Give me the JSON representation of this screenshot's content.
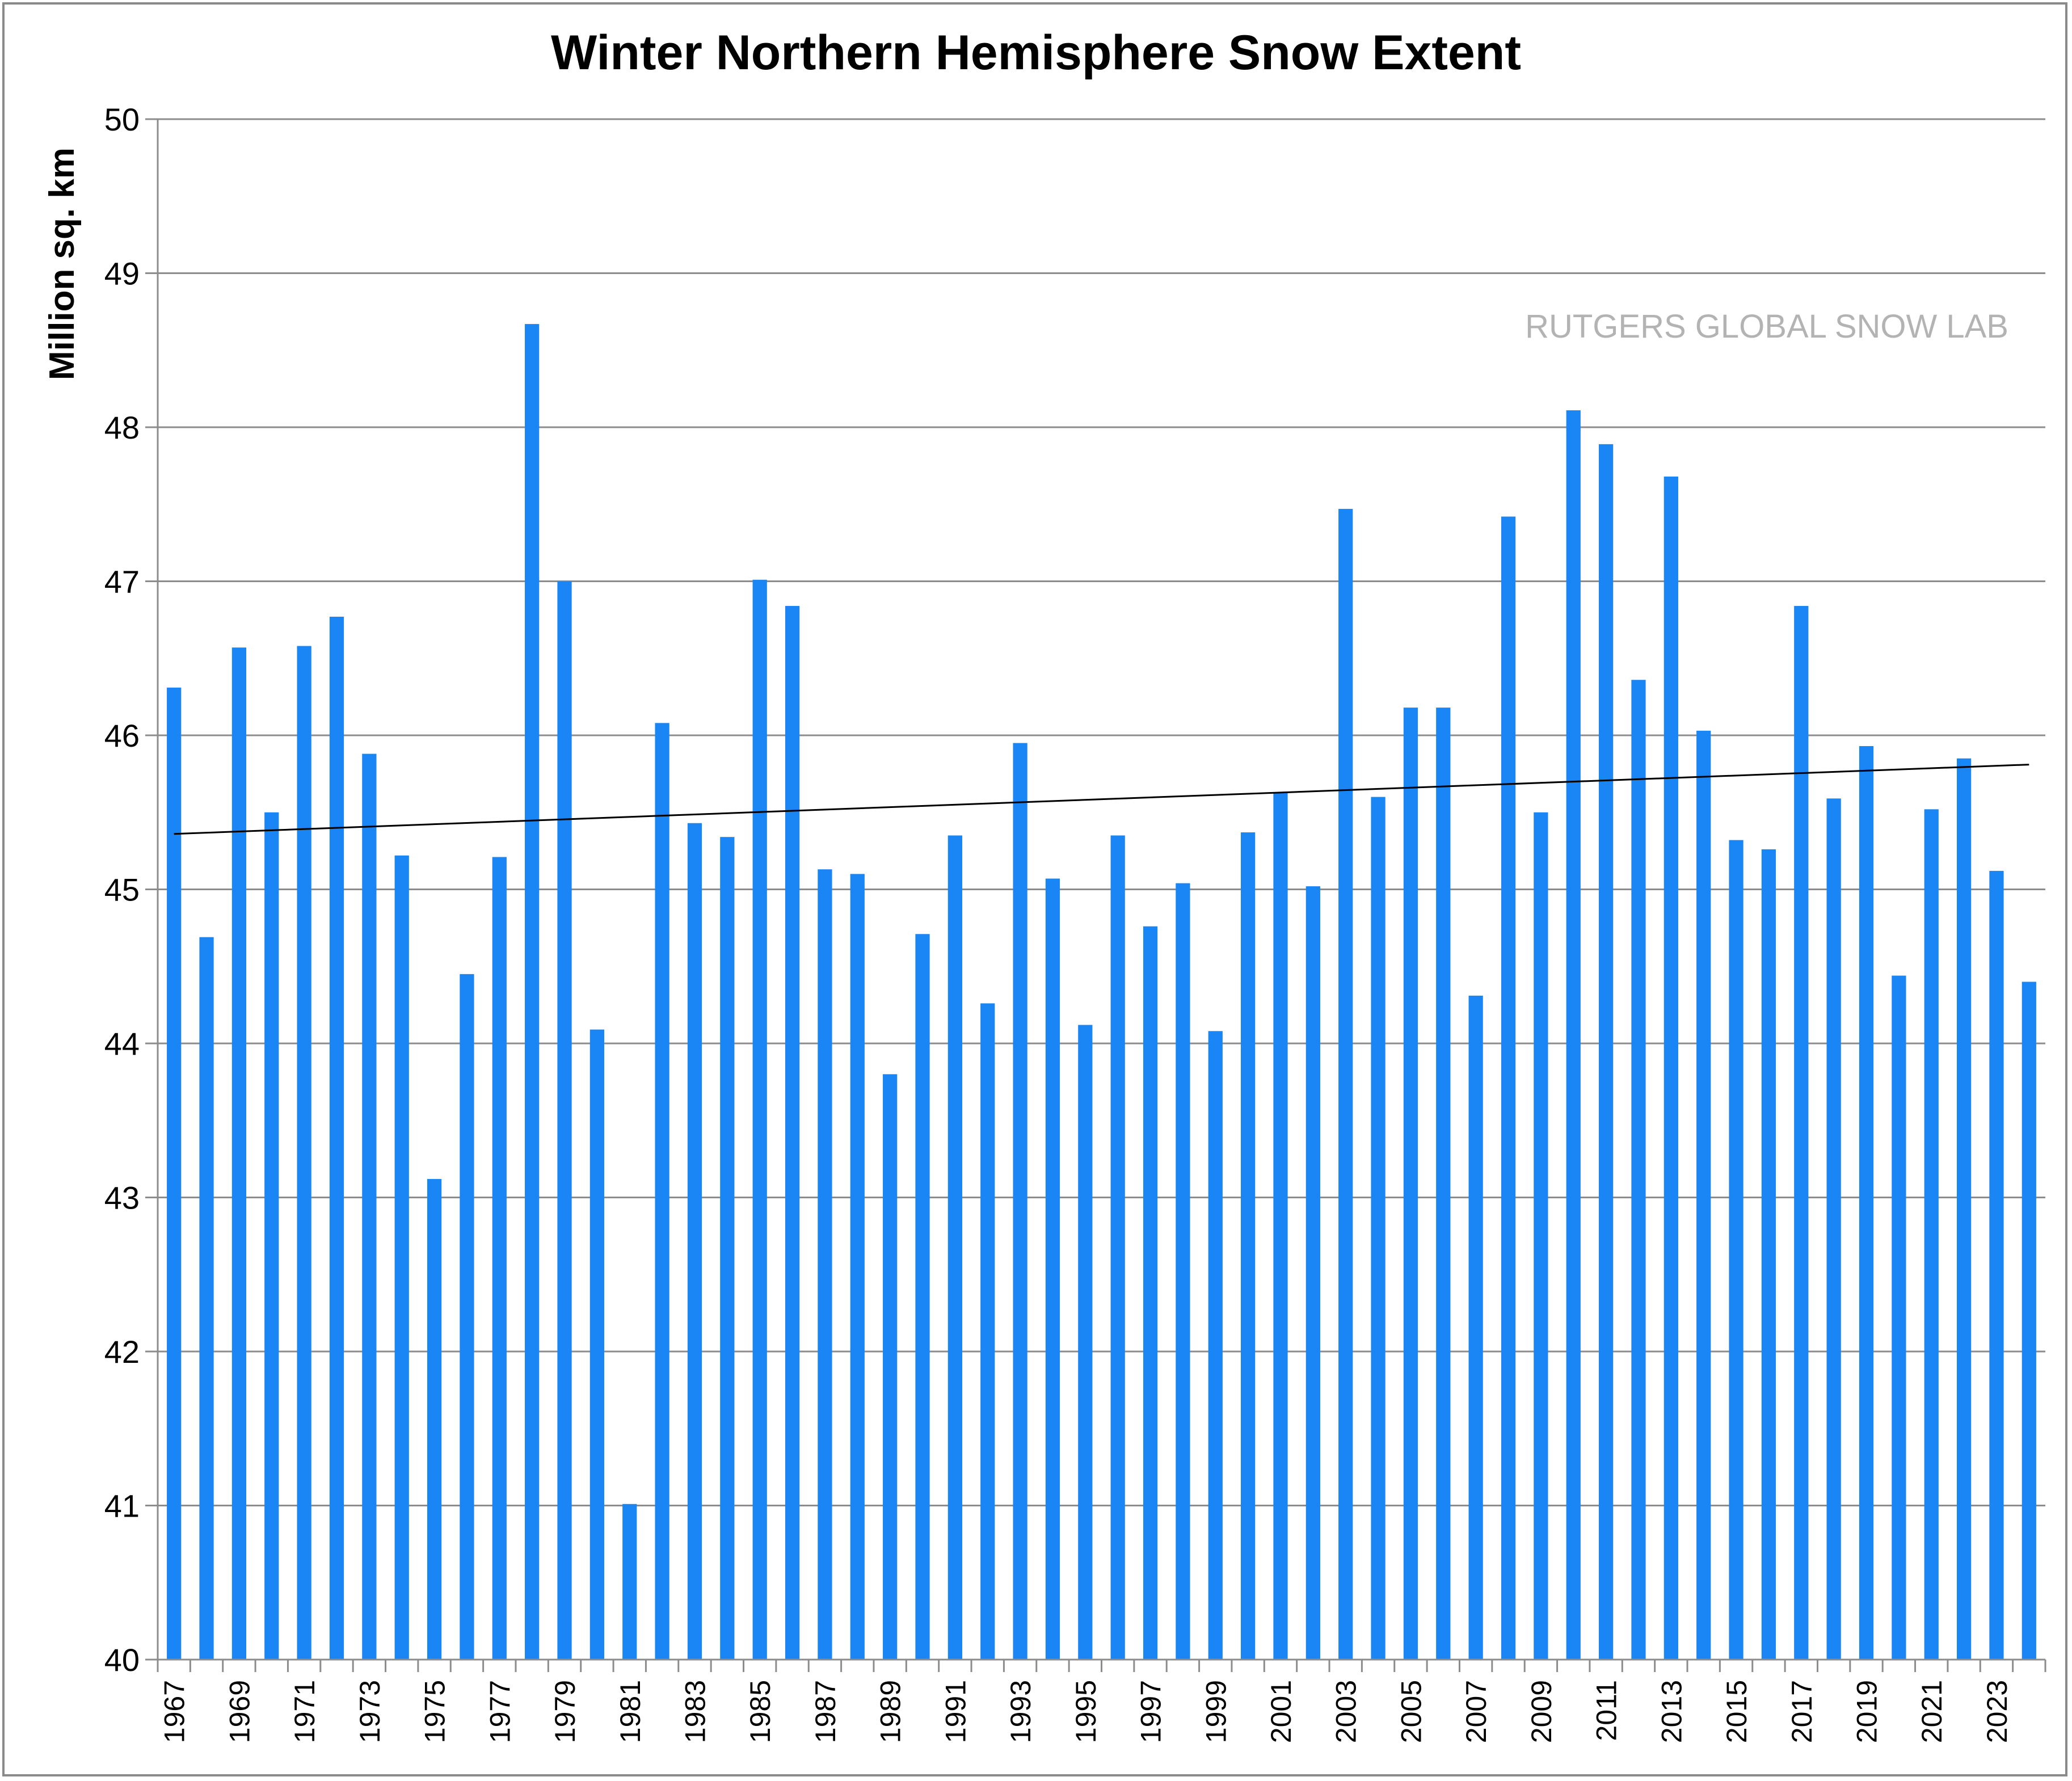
{
  "chart_data": {
    "type": "bar",
    "title": "Winter Northern Hemisphere Snow Extent",
    "ylabel": "Million sq. km",
    "xlabel": "",
    "ylim": [
      40,
      50
    ],
    "yticks": [
      40,
      41,
      42,
      43,
      44,
      45,
      46,
      47,
      48,
      49,
      50
    ],
    "grid": true,
    "annotation": "RUTGERS GLOBAL SNOW LAB",
    "bar_color": "#1a86f5",
    "categories": [
      1967,
      1968,
      1969,
      1970,
      1971,
      1972,
      1973,
      1974,
      1975,
      1976,
      1977,
      1978,
      1979,
      1980,
      1981,
      1982,
      1983,
      1984,
      1985,
      1986,
      1987,
      1988,
      1989,
      1990,
      1991,
      1992,
      1993,
      1994,
      1995,
      1996,
      1997,
      1998,
      1999,
      2000,
      2001,
      2002,
      2003,
      2004,
      2005,
      2006,
      2007,
      2008,
      2009,
      2010,
      2011,
      2012,
      2013,
      2014,
      2015,
      2016,
      2017,
      2018,
      2019,
      2020,
      2021,
      2022,
      2023,
      2024
    ],
    "values": [
      46.31,
      44.69,
      46.57,
      45.5,
      46.58,
      46.77,
      45.88,
      45.22,
      43.12,
      44.45,
      45.21,
      48.67,
      47.0,
      44.09,
      41.01,
      46.08,
      45.43,
      45.34,
      47.01,
      46.84,
      45.13,
      45.1,
      43.8,
      44.71,
      45.35,
      44.26,
      45.95,
      45.07,
      44.12,
      45.35,
      44.76,
      45.04,
      44.08,
      45.37,
      45.63,
      45.02,
      47.47,
      45.6,
      46.18,
      46.18,
      44.31,
      47.42,
      45.5,
      48.11,
      47.89,
      46.36,
      47.68,
      46.03,
      45.32,
      45.26,
      46.84,
      45.59,
      45.93,
      44.44,
      45.52,
      45.85,
      45.12,
      44.4
    ],
    "trendline": {
      "start": 45.36,
      "end": 45.81
    },
    "xtick_labels": [
      "1967",
      "1969",
      "1971",
      "1973",
      "1975",
      "1977",
      "1979",
      "1981",
      "1983",
      "1985",
      "1987",
      "1989",
      "1991",
      "1993",
      "1995",
      "1997",
      "1999",
      "2001",
      "2003",
      "2005",
      "2007",
      "2009",
      "2011",
      "2013",
      "2015",
      "2017",
      "2019",
      "2021",
      "2023"
    ]
  }
}
